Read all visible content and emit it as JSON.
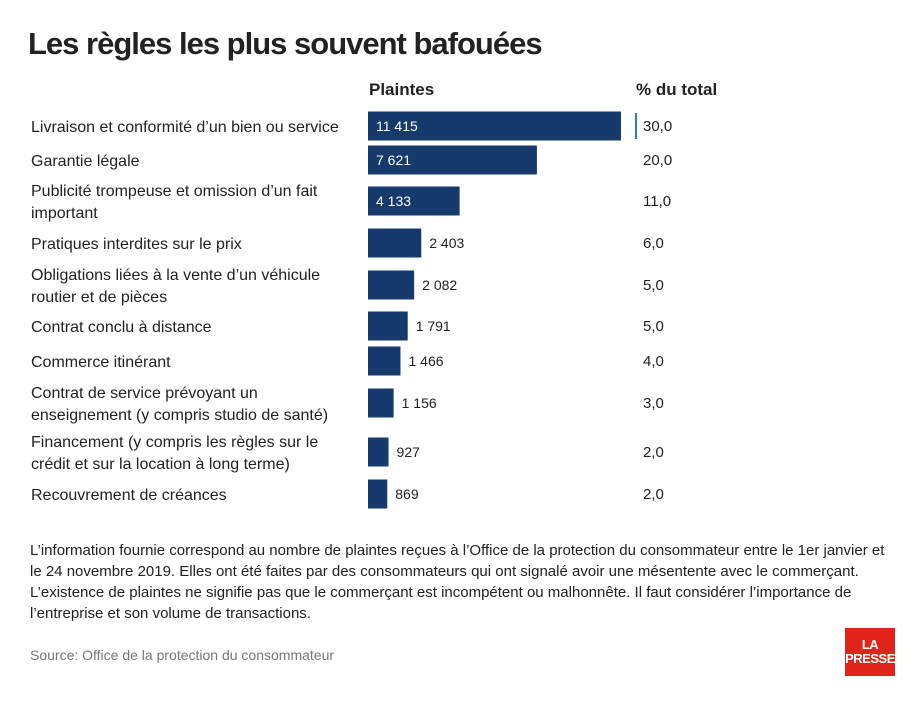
{
  "title": "Les règles les plus souvent bafouées",
  "headers": {
    "count": "Plaintes",
    "pct": "% du total"
  },
  "chart_data": {
    "type": "bar",
    "orientation": "horizontal",
    "categories": [
      [
        "Livraison et conformité d’un bien ou service"
      ],
      [
        "Garantie légale"
      ],
      [
        "Publicité trompeuse et omission d’un fait",
        "important"
      ],
      [
        "Pratiques interdites sur le prix"
      ],
      [
        "Obligations liées à la vente d’un véhicule",
        "routier et de pièces"
      ],
      [
        "Contrat conclu à distance"
      ],
      [
        "Commerce itinérant"
      ],
      [
        "Contrat de service prévoyant un",
        "enseignement (y compris studio de santé)"
      ],
      [
        "Financement (y compris les règles sur le",
        "crédit et sur la location à long terme)"
      ],
      [
        "Recouvrement de créances"
      ]
    ],
    "values": [
      11415,
      7621,
      4133,
      2403,
      2082,
      1791,
      1466,
      1156,
      927,
      869
    ],
    "value_labels": [
      "11 415",
      "7 621",
      "4 133",
      "2 403",
      "2 082",
      "1 791",
      "1 466",
      "1 156",
      "927",
      "869"
    ],
    "pct_labels": [
      "30,0",
      "20,0",
      "11,0",
      "6,0",
      "5,0",
      "5,0",
      "4,0",
      "3,0",
      "2,0",
      "2,0"
    ],
    "bar_color": "#163a6b",
    "inside_label_color": "#ffffff",
    "outside_label_color": "#222222",
    "marker_color": "#2a7fc6"
  },
  "note": "L’information fournie correspond au nombre de plaintes reçues à l’Office de la protection du consommateur entre le 1er janvier et le 24 novembre 2019. Elles ont été faites par des consommateurs qui ont signalé avoir une mésentente avec le commerçant. L’existence de plaintes ne signifie pas que le commerçant est incompétent ou malhonnête. Il faut considérer l’importance de l’entreprise et son volume de transactions.",
  "source": "Source: Office de la protection du consommateur",
  "logo": {
    "line1": "LA",
    "line2": "PRESSE",
    "color": "#e2231a"
  }
}
